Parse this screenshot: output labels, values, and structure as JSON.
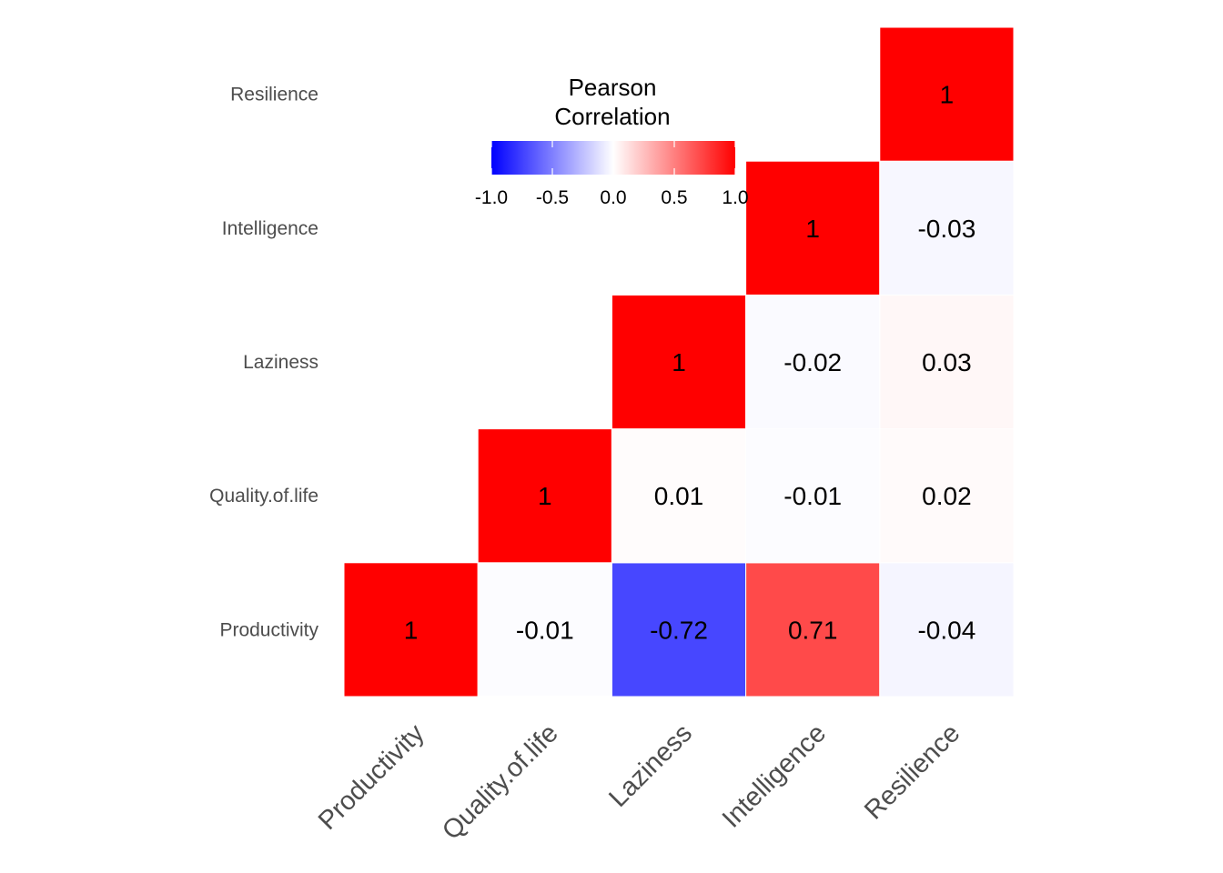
{
  "chart_data": {
    "type": "heatmap",
    "variables": [
      "Productivity",
      "Quality.of.life",
      "Laziness",
      "Intelligence",
      "Resilience"
    ],
    "cells": [
      {
        "x": "Productivity",
        "y": "Productivity",
        "value": 1,
        "label": "1"
      },
      {
        "x": "Quality.of.life",
        "y": "Productivity",
        "value": -0.01,
        "label": "-0.01"
      },
      {
        "x": "Laziness",
        "y": "Productivity",
        "value": -0.72,
        "label": "-0.72"
      },
      {
        "x": "Intelligence",
        "y": "Productivity",
        "value": 0.71,
        "label": "0.71"
      },
      {
        "x": "Resilience",
        "y": "Productivity",
        "value": -0.04,
        "label": "-0.04"
      },
      {
        "x": "Quality.of.life",
        "y": "Quality.of.life",
        "value": 1,
        "label": "1"
      },
      {
        "x": "Laziness",
        "y": "Quality.of.life",
        "value": 0.01,
        "label": "0.01"
      },
      {
        "x": "Intelligence",
        "y": "Quality.of.life",
        "value": -0.01,
        "label": "-0.01"
      },
      {
        "x": "Resilience",
        "y": "Quality.of.life",
        "value": 0.02,
        "label": "0.02"
      },
      {
        "x": "Laziness",
        "y": "Laziness",
        "value": 1,
        "label": "1"
      },
      {
        "x": "Intelligence",
        "y": "Laziness",
        "value": -0.02,
        "label": "-0.02"
      },
      {
        "x": "Resilience",
        "y": "Laziness",
        "value": 0.03,
        "label": "0.03"
      },
      {
        "x": "Intelligence",
        "y": "Intelligence",
        "value": 1,
        "label": "1"
      },
      {
        "x": "Resilience",
        "y": "Intelligence",
        "value": -0.03,
        "label": "-0.03"
      },
      {
        "x": "Resilience",
        "y": "Resilience",
        "value": 1,
        "label": "1"
      }
    ],
    "legend": {
      "title_lines": [
        "Pearson",
        "Correlation"
      ],
      "range": [
        -1,
        1
      ],
      "ticks": [
        -1.0,
        -0.5,
        0.0,
        0.5,
        1.0
      ],
      "tick_labels": [
        "-1.0",
        "-0.5",
        "0.0",
        "0.5",
        "1.0"
      ],
      "placement": "top-center"
    },
    "colors": {
      "low": "#0000FF",
      "mid": "#FFFFFF",
      "high": "#FF0000"
    },
    "title": "",
    "xlabel": "",
    "ylabel": ""
  }
}
